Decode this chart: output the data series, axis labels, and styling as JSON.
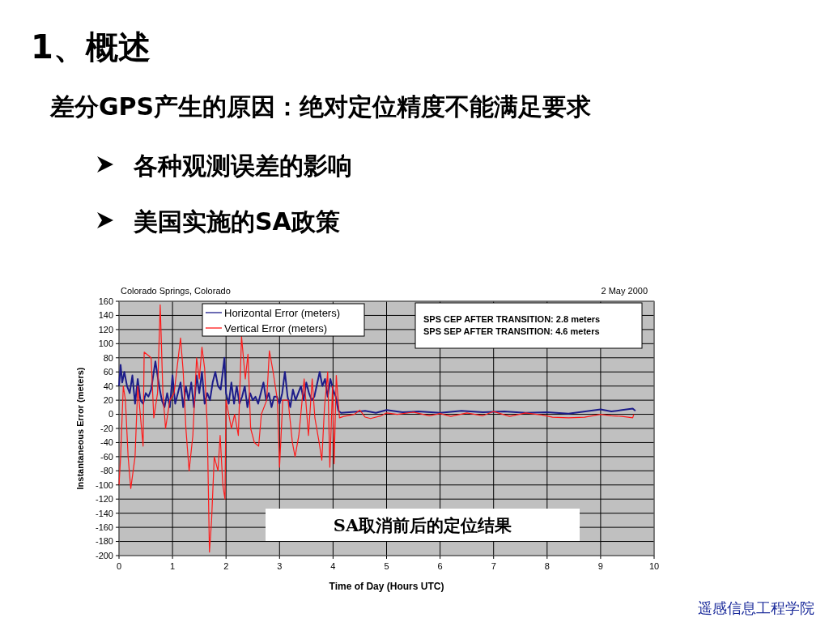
{
  "chart_data": {
    "type": "line",
    "title": "1、概述",
    "subtitle": "差分GPS产生的原因：绝对定位精度不能满足要求",
    "xlabel": "Time of Day (Hours UTC)",
    "ylabel": "Instantaneous Error (meters)",
    "xlim": [
      0,
      10
    ],
    "xticks": [
      0,
      1,
      2,
      3,
      4,
      5,
      6,
      7,
      8,
      9,
      10
    ],
    "ylim": [
      -200,
      160
    ],
    "yticks": [
      -200,
      -180,
      -160,
      -140,
      -120,
      -100,
      -80,
      -60,
      -40,
      -20,
      0,
      20,
      40,
      60,
      80,
      100,
      120,
      140,
      160
    ],
    "grid": true,
    "legend": "top left",
    "annotations": [
      "各种观测误差的影响",
      "美国实施的SA政策",
      "Colorado Springs, Colorado",
      "2 May 2000",
      "SPS CEP AFTER TRANSITION:  2.8 meters",
      "SPS SEP AFTER TRANSITION:  4.6 meters",
      "SA取消前后的定位结果",
      "遥感信息工程学院"
    ],
    "series": [
      {
        "name": "Horizontal Error (meters)",
        "color": "#1c1c8a",
        "x": [
          0,
          0.03,
          0.06,
          0.1,
          0.15,
          0.2,
          0.25,
          0.3,
          0.35,
          0.4,
          0.45,
          0.5,
          0.55,
          0.6,
          0.68,
          0.75,
          0.8,
          0.85,
          0.9,
          0.95,
          1.0,
          1.05,
          1.1,
          1.15,
          1.2,
          1.25,
          1.3,
          1.35,
          1.4,
          1.45,
          1.5,
          1.55,
          1.6,
          1.65,
          1.7,
          1.75,
          1.8,
          1.85,
          1.9,
          1.97,
          2.0,
          2.05,
          2.1,
          2.15,
          2.2,
          2.25,
          2.3,
          2.35,
          2.4,
          2.45,
          2.5,
          2.55,
          2.6,
          2.7,
          2.75,
          2.8,
          2.85,
          2.9,
          2.95,
          3.0,
          3.05,
          3.1,
          3.15,
          3.2,
          3.25,
          3.3,
          3.4,
          3.45,
          3.5,
          3.55,
          3.6,
          3.65,
          3.75,
          3.8,
          3.85,
          3.9,
          3.95,
          4.0,
          4.05,
          4.1,
          4.15,
          4.3,
          4.5,
          4.6,
          4.8,
          5.0,
          5.3,
          5.6,
          6.0,
          6.4,
          6.8,
          7.2,
          7.6,
          8.0,
          8.4,
          8.8,
          9.0,
          9.2,
          9.4,
          9.6,
          9.65
        ],
        "values": [
          40,
          70,
          45,
          60,
          40,
          30,
          55,
          15,
          50,
          20,
          15,
          30,
          25,
          35,
          75,
          40,
          20,
          10,
          30,
          10,
          55,
          15,
          30,
          45,
          10,
          40,
          20,
          45,
          10,
          55,
          30,
          60,
          15,
          30,
          20,
          45,
          60,
          40,
          35,
          80,
          30,
          15,
          45,
          15,
          40,
          15,
          25,
          40,
          10,
          30,
          20,
          25,
          15,
          45,
          20,
          30,
          10,
          25,
          25,
          15,
          30,
          60,
          25,
          10,
          35,
          20,
          40,
          20,
          45,
          30,
          20,
          25,
          60,
          40,
          50,
          25,
          50,
          35,
          25,
          5,
          2,
          3,
          4,
          5,
          2,
          6,
          3,
          4,
          2,
          5,
          3,
          4,
          2,
          3,
          1,
          5,
          7,
          4,
          6,
          8,
          5
        ]
      },
      {
        "name": "Vertical Error (meters)",
        "color": "#ff1a1a",
        "x": [
          0,
          0.03,
          0.08,
          0.12,
          0.17,
          0.22,
          0.3,
          0.35,
          0.45,
          0.47,
          0.6,
          0.65,
          0.72,
          0.77,
          0.82,
          0.87,
          0.95,
          1.03,
          1.15,
          1.2,
          1.25,
          1.31,
          1.38,
          1.45,
          1.5,
          1.55,
          1.6,
          1.65,
          1.69,
          1.73,
          1.78,
          1.85,
          1.89,
          1.94,
          1.98,
          2.0,
          2.1,
          2.16,
          2.23,
          2.29,
          2.36,
          2.41,
          2.46,
          2.53,
          2.61,
          2.66,
          2.76,
          2.81,
          2.88,
          2.96,
          3.0,
          3.06,
          3.16,
          3.24,
          3.29,
          3.36,
          3.46,
          3.54,
          3.61,
          3.66,
          3.74,
          3.79,
          3.84,
          3.9,
          3.94,
          3.99,
          4.02,
          4.06,
          4.12,
          4.2,
          4.4,
          4.5,
          4.6,
          4.7,
          4.9,
          5.0,
          5.2,
          5.5,
          5.8,
          6.0,
          6.2,
          6.5,
          6.8,
          7.0,
          7.3,
          7.6,
          7.9,
          8.1,
          8.4,
          8.7,
          9.0,
          9.2,
          9.4,
          9.6,
          9.62
        ],
        "values": [
          -100,
          -60,
          40,
          20,
          -60,
          -105,
          -60,
          40,
          -45,
          88,
          80,
          -5,
          30,
          155,
          30,
          -20,
          20,
          30,
          108,
          60,
          -20,
          -80,
          -30,
          80,
          50,
          95,
          65,
          -20,
          -195,
          -150,
          -60,
          -80,
          -30,
          -100,
          -120,
          20,
          -20,
          0,
          -30,
          110,
          50,
          85,
          -20,
          -40,
          -45,
          0,
          20,
          90,
          60,
          20,
          -75,
          20,
          20,
          -40,
          -60,
          -30,
          50,
          -30,
          50,
          -5,
          -40,
          -65,
          10,
          60,
          -75,
          40,
          -70,
          55,
          -5,
          -3,
          0,
          6,
          -4,
          -6,
          -2,
          2,
          0,
          3,
          -2,
          1,
          -3,
          2,
          -2,
          4,
          -3,
          2,
          -1,
          -4,
          -5,
          -4,
          0,
          -2,
          -3,
          -5,
          0
        ]
      }
    ]
  }
}
